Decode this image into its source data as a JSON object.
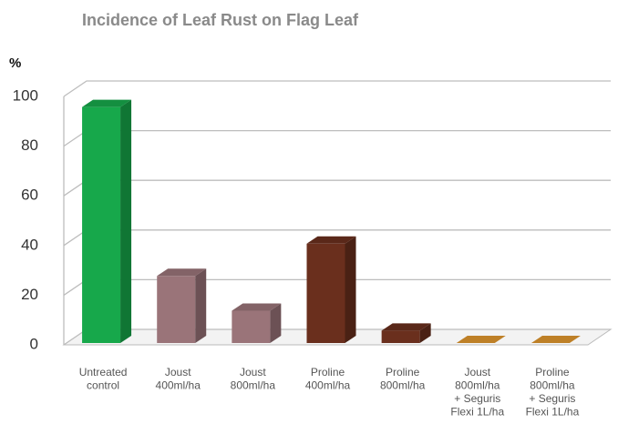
{
  "chart_data": {
    "type": "bar3d",
    "title": "Incidence of Leaf Rust on Flag Leaf",
    "y_label": "%",
    "categories": [
      "Untreated\ncontrol",
      "Joust\n400ml/ha",
      "Joust\n800ml/ha",
      "Proline\n400ml/ha",
      "Proline\n800ml/ha",
      "Joust\n800ml/ha\n+ Seguris\nFlexi 1L/ha",
      "Proline\n800ml/ha\n+ Seguris\nFlexi 1L/ha"
    ],
    "values": [
      95,
      27,
      13,
      40,
      5,
      0,
      0
    ],
    "colors": [
      "#17a84b",
      "#9a7479",
      "#9a7479",
      "#6a2f1d",
      "#6a2f1d",
      "#e0962e",
      "#e0962e"
    ],
    "ylim": [
      0,
      100
    ],
    "yticks": [
      0,
      20,
      40,
      60,
      80,
      100
    ],
    "grid": true
  }
}
